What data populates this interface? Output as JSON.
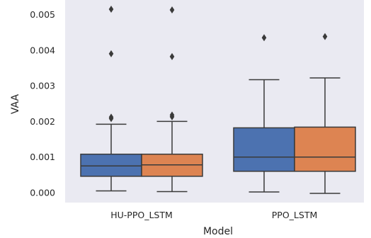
{
  "chart_data": {
    "type": "box",
    "title": "",
    "xlabel": "Model",
    "ylabel": "VAA",
    "categories": [
      "HU-PPO_LSTM",
      "PPO_LSTM"
    ],
    "ylim": [
      -0.00025,
      0.0053
    ],
    "yticks": [
      0.0,
      0.001,
      0.002,
      0.003,
      0.004,
      0.005
    ],
    "ytick_labels": [
      "0.000",
      "0.001",
      "0.002",
      "0.003",
      "0.004",
      "0.005"
    ],
    "grid": false,
    "legend": "none",
    "plot_background": "#eaeaf2",
    "series": [
      {
        "color": "#4c72b0",
        "boxes": [
          {
            "category": "HU-PPO_LSTM",
            "whisker_low": 5e-05,
            "q1": 0.00046,
            "median": 0.00075,
            "q3": 0.00108,
            "whisker_high": 0.00192,
            "outliers": [
              0.00208,
              0.00212,
              0.0039,
              0.00515
            ]
          },
          {
            "category": "PPO_LSTM",
            "whisker_low": 2e-05,
            "q1": 0.0006,
            "median": 0.001,
            "q3": 0.00182,
            "whisker_high": 0.00317,
            "outliers": [
              0.00435
            ]
          }
        ]
      },
      {
        "color": "#dd8452",
        "boxes": [
          {
            "category": "HU-PPO_LSTM",
            "whisker_low": 3e-05,
            "q1": 0.00046,
            "median": 0.00078,
            "q3": 0.00108,
            "whisker_high": 0.002,
            "outliers": [
              0.00213,
              0.00218,
              0.00382,
              0.00513
            ]
          },
          {
            "category": "PPO_LSTM",
            "whisker_low": -2e-05,
            "q1": 0.0006,
            "median": 0.001,
            "q3": 0.00184,
            "whisker_high": 0.00322,
            "outliers": [
              0.00438
            ]
          }
        ]
      }
    ]
  }
}
